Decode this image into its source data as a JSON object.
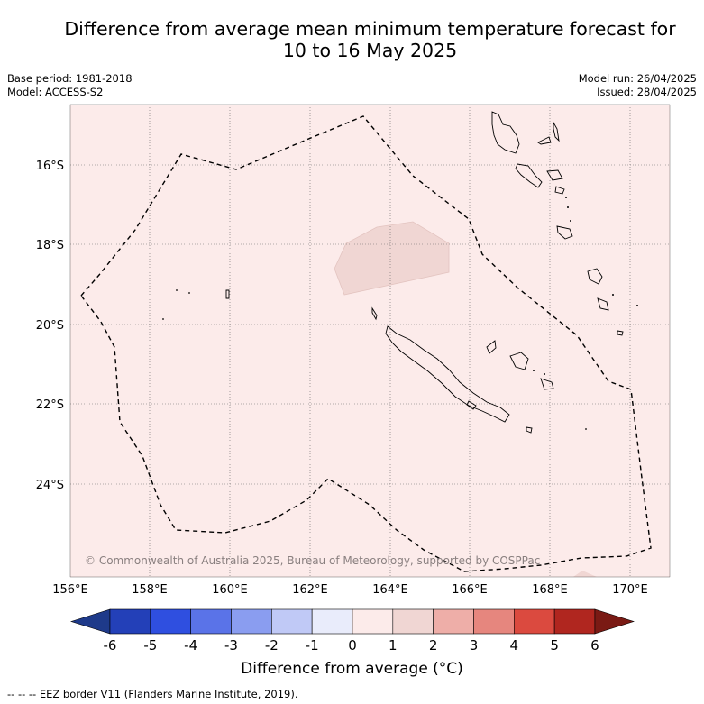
{
  "title": {
    "line1": "Difference from average mean minimum temperature forecast for",
    "line2": "10 to 16 May 2025"
  },
  "meta": {
    "base_period": "Base period: 1981-2018",
    "model": "Model: ACCESS-S2",
    "model_run": "Model run: 26/04/2025",
    "issued": "Issued: 28/04/2025"
  },
  "map": {
    "background_color": "#fcebea",
    "lat_labels": [
      "16°S",
      "18°S",
      "20°S",
      "22°S",
      "24°S"
    ],
    "lon_labels": [
      "156°E",
      "158°E",
      "160°E",
      "162°E",
      "164°E",
      "166°E",
      "168°E",
      "170°E"
    ],
    "copyright": "© Commonwealth of Australia 2025, Bureau of Meteorology, supported by COSPPac"
  },
  "colorbar": {
    "ticks": [
      "-6",
      "-5",
      "-4",
      "-3",
      "-2",
      "-1",
      "0",
      "1",
      "2",
      "3",
      "4",
      "5",
      "6"
    ],
    "colors": [
      "#1e3a8a",
      "#2340b8",
      "#2f4fe0",
      "#5a73e8",
      "#8a9df0",
      "#c0c9f6",
      "#e9ecfb",
      "#fcebea",
      "#f0d6d3",
      "#eeaea8",
      "#e6867e",
      "#db4a3f",
      "#b0261f",
      "#7a1a14"
    ],
    "label": "Difference from average (°C)"
  },
  "footer": "--  --  -- EEZ border V11 (Flanders Marine Institute, 2019)."
}
